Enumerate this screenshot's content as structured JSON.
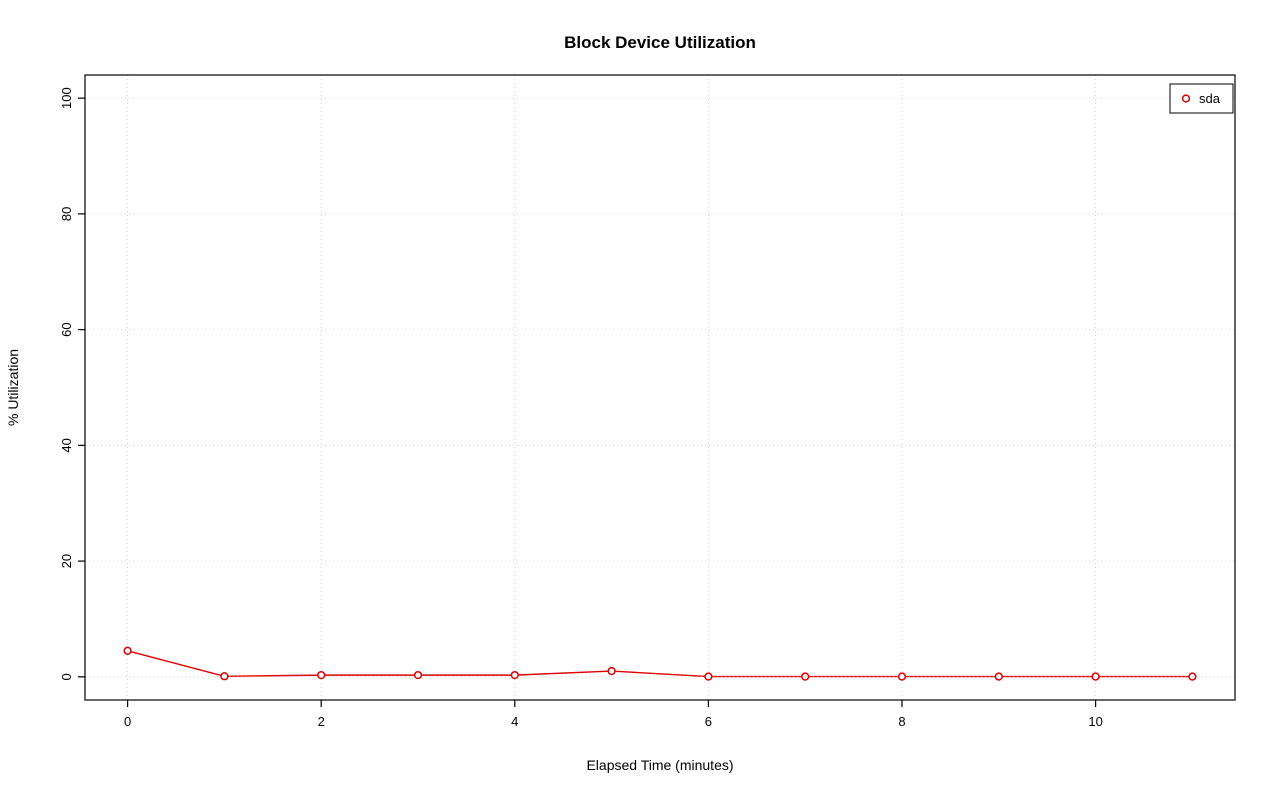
{
  "page": {
    "background": "#ffffff"
  },
  "chart_data": {
    "type": "line",
    "title": "Block Device Utilization",
    "xlabel": "Elapsed Time (minutes)",
    "ylabel": "% Utilization",
    "x": [
      0,
      1,
      2,
      3,
      4,
      5,
      6,
      7,
      8,
      9,
      10,
      11
    ],
    "series": [
      {
        "name": "sda",
        "color": "#dd0000",
        "marker": "open-circle",
        "values": [
          4.5,
          0.1,
          0.3,
          0.3,
          0.3,
          1.0,
          0.05,
          0.05,
          0.05,
          0.05,
          0.05,
          0.05
        ]
      }
    ],
    "xlim": [
      -0.44,
      11.44
    ],
    "ylim": [
      -4,
      104
    ],
    "xticks": [
      0,
      2,
      4,
      6,
      8,
      10
    ],
    "yticks": [
      0,
      20,
      40,
      60,
      80,
      100
    ],
    "grid": true,
    "grid_color": "#cfcfcf",
    "axis_color": "#000000",
    "legend": {
      "position": "top-right",
      "entries": [
        {
          "label": "sda",
          "color": "#dd0000"
        }
      ]
    }
  }
}
